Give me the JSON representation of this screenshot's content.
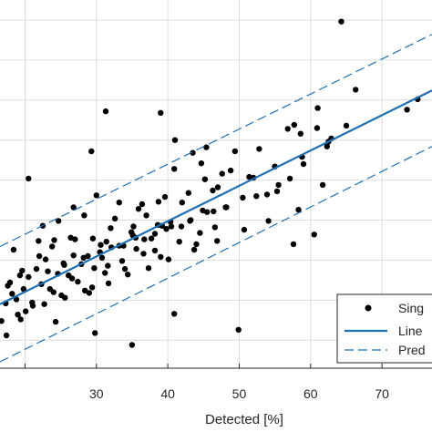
{
  "chart_data": {
    "type": "scatter",
    "xlabel": "Detected [%]",
    "ylabel": "",
    "xlim": [
      16.5,
      77
    ],
    "ylim": [
      6.5,
      52.5
    ],
    "x_ticks": [
      20,
      30,
      40,
      50,
      60,
      70
    ],
    "x_tick_labels": [
      "",
      "30",
      "40",
      "50",
      "60",
      "70"
    ],
    "y_ticks": [
      10,
      15,
      20,
      25,
      30,
      35,
      40,
      45,
      50
    ],
    "grid": true,
    "legend_position": "bottom-right",
    "colors": {
      "points": "#000000",
      "line": "#1f6fb2",
      "grid": "#dcdcdc",
      "axis": "#262626"
    },
    "series": [
      {
        "name": "Sing",
        "kind": "scatter",
        "x": [
          64.3,
          31.3,
          39.0,
          75.0,
          66.3,
          73.5,
          61.0,
          62.5,
          59.0,
          41.0,
          24.7,
          43.5,
          45.4,
          58.6,
          49.4,
          40.9,
          65.0,
          29.3,
          57.7,
          56.8,
          62.3,
          62.9,
          20.5,
          47.6,
          30.0,
          22.5,
          55.0,
          44.7,
          52.8,
          60.9,
          38.7,
          46.3,
          26.8,
          33.2,
          36.4,
          28.3,
          42.9,
          51.4,
          61.7,
          24.1,
          35.2,
          18.4,
          58.8,
          21.9,
          35.1,
          40.4,
          44.9,
          52.4,
          29.5,
          39.2,
          48.1,
          22.9,
          31.4,
          34.9,
          38.6,
          55.3,
          19.6,
          26.8,
          30.6,
          43.1,
          25.4,
          33.8,
          37.7,
          41.9,
          46.4,
          57.1,
          17.9,
          21.6,
          28.8,
          32.1,
          36.7,
          39.8,
          53.9,
          19.8,
          24.6,
          27.9,
          30.8,
          35.6,
          44.5,
          17.3,
          22.3,
          26.1,
          29.7,
          33.6,
          38.2,
          18.8,
          23.5,
          27.4,
          31.2,
          21.1,
          25.1,
          29.4,
          19.4,
          35.0,
          29.8,
          40.9,
          24.3,
          17.4,
          49.9,
          22.0,
          27.0,
          32.0,
          37.0,
          42.0,
          47.0,
          52.0,
          20.5,
          25.5,
          30.5,
          35.5,
          40.5,
          45.5,
          50.5,
          55.5,
          23.2,
          28.2,
          33.2,
          38.2,
          43.2,
          48.2,
          18.2,
          26.6,
          31.6,
          36.6,
          41.6,
          46.6,
          21.0,
          24.0,
          34.0,
          39.0,
          44.0,
          19.0,
          29.0,
          57.6,
          60.5,
          16.7,
          20.1,
          22.7,
          25.6,
          28.4,
          31.7,
          34.4,
          37.3,
          40.1,
          43.7,
          46.9,
          50.7,
          54.1,
          58.3,
          17.6,
          19.3,
          23.8,
          26.4,
          32.6,
          35.9,
          39.6,
          45.2,
          48.8
        ],
        "y": [
          49.8,
          38.6,
          38.4,
          40.1,
          41.3,
          38.8,
          39.0,
          34.8,
          32.0,
          35.0,
          24.9,
          33.4,
          34.1,
          35.8,
          33.6,
          31.4,
          36.8,
          33.6,
          36.9,
          36.4,
          34.2,
          35.2,
          30.2,
          30.8,
          28.1,
          24.3,
          31.7,
          32.1,
          33.9,
          36.5,
          27.3,
          28.7,
          26.6,
          27.2,
          27.0,
          25.6,
          28.4,
          30.4,
          29.4,
          22.5,
          24.2,
          21.3,
          32.9,
          22.4,
          23.1,
          24.8,
          26.2,
          28.0,
          22.7,
          24.3,
          26.6,
          20.1,
          22.3,
          23.5,
          24.4,
          28.6,
          18.7,
          20.6,
          21.9,
          24.9,
          19.6,
          21.8,
          22.7,
          24.2,
          26.1,
          30.2,
          17.2,
          18.9,
          20.5,
          21.6,
          22.6,
          23.9,
          28.2,
          16.4,
          18.3,
          19.5,
          20.3,
          21.4,
          23.4,
          14.6,
          17.0,
          18.1,
          19.0,
          19.9,
          21.2,
          15.1,
          16.4,
          17.3,
          18.4,
          14.3,
          15.6,
          16.6,
          12.6,
          9.4,
          10.9,
          13.3,
          12.3,
          10.6,
          11.3,
          20.5,
          22.6,
          24.0,
          25.6,
          27.2,
          29.1,
          30.3,
          17.9,
          19.4,
          21.0,
          22.8,
          24.2,
          26.0,
          27.8,
          29.4,
          18.6,
          20.3,
          21.8,
          23.3,
          25.0,
          26.6,
          15.8,
          17.7,
          19.3,
          20.8,
          22.3,
          24.1,
          14.7,
          16.0,
          18.9,
          20.4,
          22.0,
          13.2,
          15.9,
          22.0,
          23.2,
          12.4,
          13.6,
          14.5,
          15.3,
          16.2,
          17.1,
          18.2,
          19.0,
          20.1,
          21.3,
          22.4,
          23.8,
          24.9,
          26.3,
          16.8,
          18.1,
          21.7,
          22.8,
          25.2,
          26.4,
          27.9,
          30.1,
          31.2
        ]
      },
      {
        "name": "Line",
        "kind": "line",
        "x": [
          16.5,
          77
        ],
        "y": [
          14.5,
          41.2
        ]
      },
      {
        "name": "Pred",
        "kind": "dashed",
        "x": [
          16.5,
          77
        ],
        "y": [
          21.7,
          48.2
        ]
      },
      {
        "name": "",
        "kind": "dashed",
        "x": [
          16.5,
          77
        ],
        "y": [
          7.3,
          34.2
        ]
      }
    ]
  }
}
